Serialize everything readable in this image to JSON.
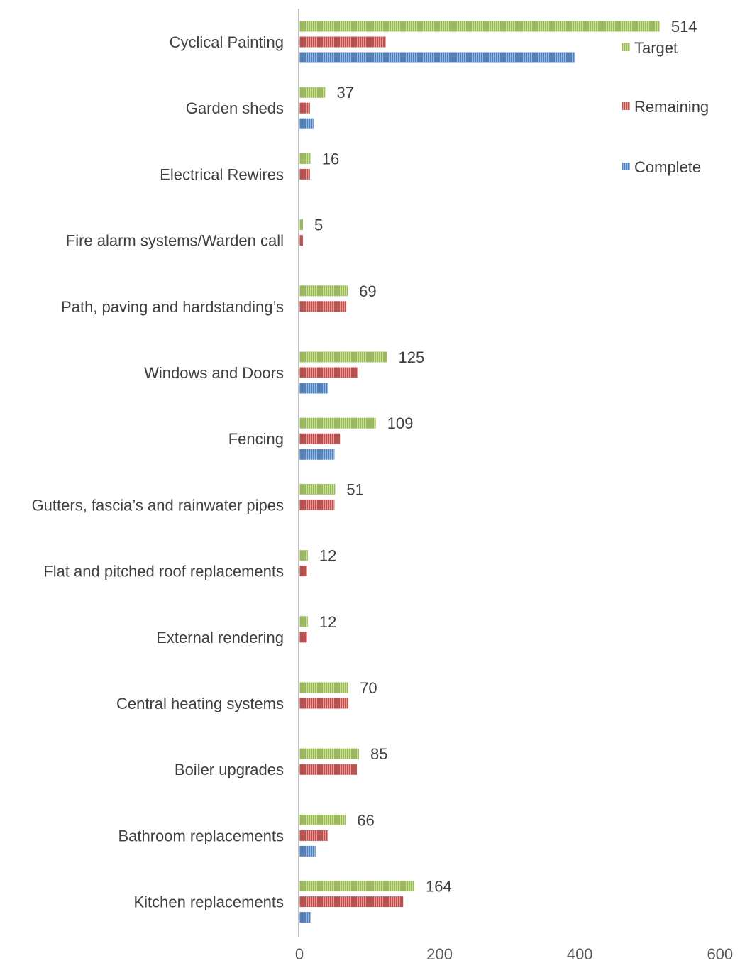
{
  "chart_data": {
    "type": "bar",
    "orientation": "horizontal",
    "categories": [
      "Cyclical Painting",
      "Garden sheds",
      "Electrical Rewires",
      "Fire alarm systems/Warden call",
      "Path, paving and hardstanding’s",
      "Windows and Doors",
      "Fencing",
      "Gutters, fascia’s and rainwater pipes",
      "Flat and pitched roof replacements",
      "External rendering",
      "Central heating systems",
      "Boiler upgrades",
      "Bathroom replacements",
      "Kitchen replacements"
    ],
    "series": [
      {
        "name": "Target",
        "color": "#9BBB59",
        "values": [
          514,
          37,
          16,
          5,
          69,
          125,
          109,
          51,
          12,
          12,
          70,
          85,
          66,
          164
        ],
        "show_labels": true
      },
      {
        "name": "Remaining",
        "color": "#C0504D",
        "values": [
          123,
          15,
          15,
          5,
          67,
          84,
          58,
          50,
          11,
          11,
          70,
          82,
          41,
          148
        ],
        "show_labels": false
      },
      {
        "name": "Complete",
        "color": "#4F81BD",
        "values": [
          393,
          20,
          0,
          0,
          0,
          41,
          50,
          0,
          0,
          0,
          0,
          0,
          23,
          16
        ],
        "show_labels": false
      }
    ],
    "title": "",
    "xlabel": "",
    "ylabel": "",
    "xlim": [
      0,
      600
    ],
    "xticks": [
      0,
      200,
      400,
      600
    ],
    "tick_labels": [
      "0",
      "200",
      "400",
      "600"
    ],
    "grid": false,
    "legend": {
      "position": "top-right",
      "entries": [
        "Target",
        "Remaining",
        "Complete"
      ]
    },
    "colors": {
      "axis": "#BFBFBF",
      "text": "#404040"
    }
  }
}
